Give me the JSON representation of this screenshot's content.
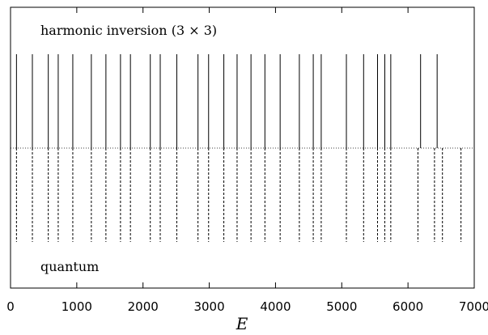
{
  "chart_data": {
    "type": "stick",
    "xlabel": "E",
    "xlim": [
      0,
      7000
    ],
    "xticks": [
      0,
      1000,
      2000,
      3000,
      4000,
      5000,
      6000,
      7000
    ],
    "annotations": {
      "top": "harmonic inversion (3 × 3)",
      "bottom": "quantum"
    },
    "series": [
      {
        "name": "harmonic inversion (3 × 3)",
        "style": "solid",
        "panel": "top",
        "values": [
          90,
          330,
          570,
          720,
          940,
          1220,
          1440,
          1660,
          1810,
          2110,
          2260,
          2510,
          2830,
          2990,
          3220,
          3420,
          3630,
          3840,
          4070,
          4360,
          4570,
          4690,
          5070,
          5330,
          5540,
          5650,
          5740,
          6190,
          6440
        ]
      },
      {
        "name": "quantum",
        "style": "dashed",
        "panel": "bottom",
        "values": [
          90,
          330,
          570,
          720,
          940,
          1220,
          1440,
          1660,
          1810,
          2110,
          2260,
          2510,
          2830,
          2990,
          3220,
          3420,
          3630,
          3840,
          4070,
          4360,
          4570,
          4690,
          5070,
          5330,
          5540,
          5650,
          5740,
          6150,
          6400,
          6520,
          6800
        ]
      }
    ],
    "baseline": "dotted",
    "colors": {
      "line": "#000000",
      "background": "#ffffff"
    }
  }
}
